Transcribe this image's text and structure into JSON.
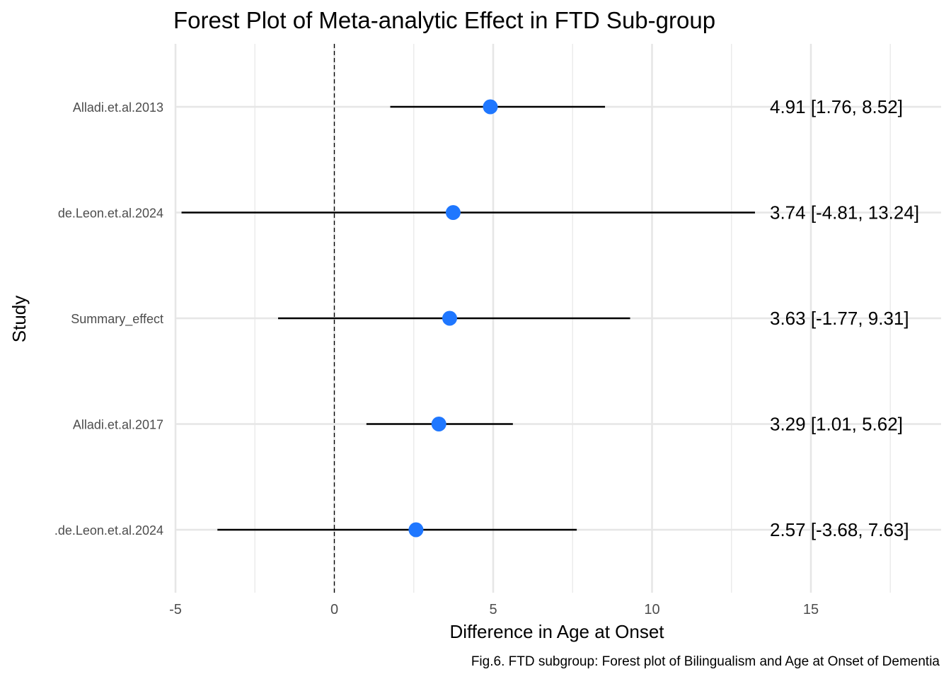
{
  "chart_data": {
    "type": "forest",
    "title": "Forest Plot of Meta-analytic Effect in FTD Sub-group",
    "xlabel": "Difference in Age at Onset",
    "ylabel": "Study",
    "caption": "Fig.6. FTD subgroup: Forest plot of Bilingualism and Age at Onset of Dementia",
    "xlim": [
      -5,
      18.5
    ],
    "xticks": [
      -5,
      0,
      5,
      10,
      15
    ],
    "reference_line": 0,
    "grid": true,
    "point_color": "#1f77ff",
    "studies": [
      {
        "name": "Alladi.et.al.2013",
        "estimate": 4.91,
        "lower": 1.76,
        "upper": 8.52,
        "label": "4.91 [1.76, 8.52]"
      },
      {
        "name": "de.Leon.et.al.2024",
        "estimate": 3.74,
        "lower": -4.81,
        "upper": 13.24,
        "label": "3.74 [-4.81, 13.24]"
      },
      {
        "name": "Summary_effect",
        "estimate": 3.63,
        "lower": -1.77,
        "upper": 9.31,
        "label": "3.63 [-1.77, 9.31]"
      },
      {
        "name": "Alladi.et.al.2017",
        "estimate": 3.29,
        "lower": 1.01,
        "upper": 5.62,
        "label": "3.29 [1.01, 5.62]"
      },
      {
        "name": ".de.Leon.et.al.2024",
        "estimate": 2.57,
        "lower": -3.68,
        "upper": 7.63,
        "label": "2.57 [-3.68, 7.63]"
      }
    ]
  }
}
